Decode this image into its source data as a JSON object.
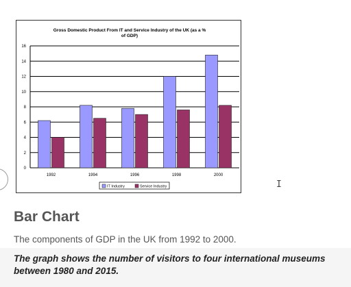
{
  "chart_data": {
    "type": "bar",
    "title": "Gross Domestic Product From IT and Service Industry of the UK (as a % of GDP)",
    "categories": [
      "1992",
      "1994",
      "1996",
      "1998",
      "2000"
    ],
    "series": [
      {
        "name": "IT Industry",
        "color": "#9999ff",
        "values": [
          6.2,
          8.2,
          7.8,
          12.0,
          14.8
        ]
      },
      {
        "name": "Service Industry",
        "color": "#993366",
        "values": [
          4.0,
          6.5,
          7.0,
          7.6,
          8.2
        ]
      }
    ],
    "ylim": [
      0,
      16
    ],
    "yticks": [
      "0",
      "2",
      "4",
      "6",
      "8",
      "10",
      "12",
      "14",
      "16"
    ],
    "grid": true,
    "legend": "bottom"
  },
  "article": {
    "heading": "Bar Chart",
    "description": "The components of GDP in the UK from 1992 to 2000.",
    "note": "The graph shows the number of visitors to four international museums between 1980 and 2015."
  }
}
